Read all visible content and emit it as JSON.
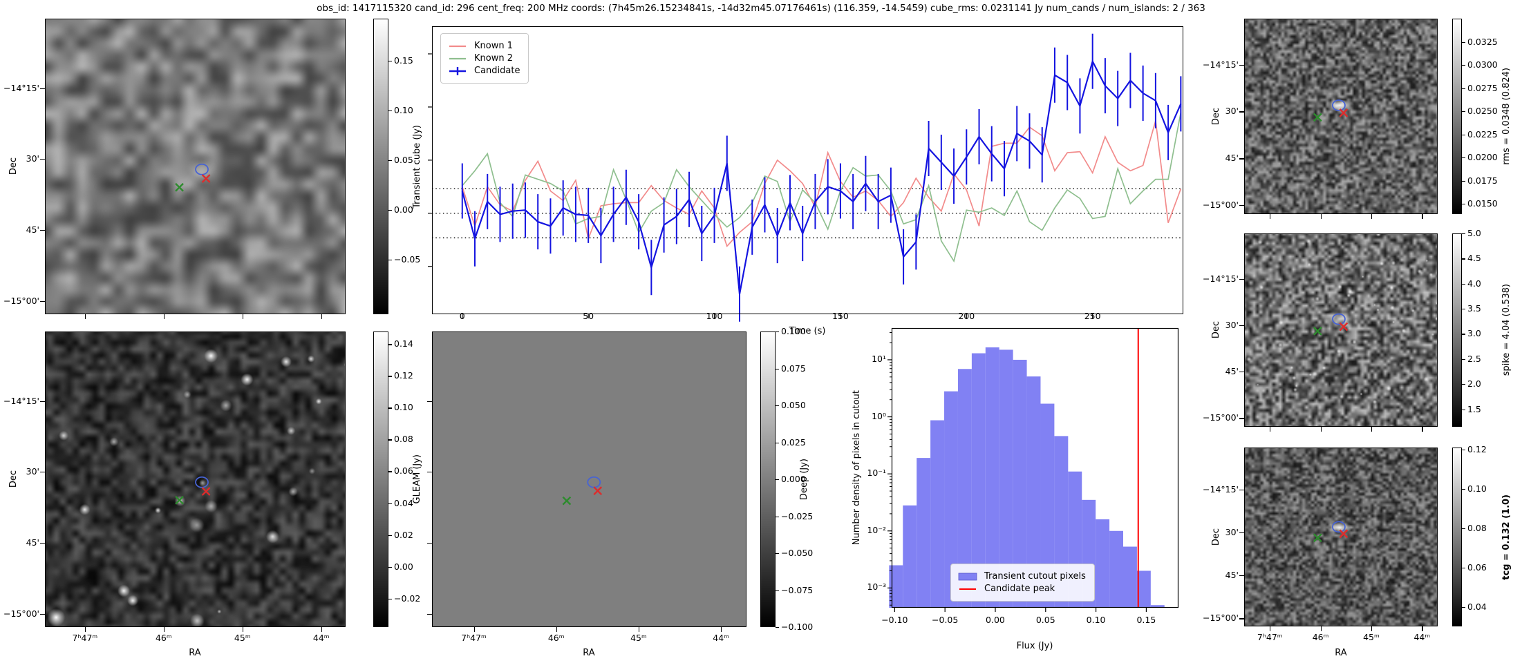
{
  "title": "obs_id: 1417115320 cand_id: 296 cent_freq: 200 MHz coords: (7h45m26.15234841s, -14d32m45.07176461s) (116.359, -14.5459) cube_rms: 0.0231141 Jy num_cands / num_islands: 2 / 363",
  "colors": {
    "known1": "#f28b8b",
    "known2": "#8fbf8f",
    "candidate": "#1414e0",
    "histogram_fill": "#8181f3",
    "candidate_peak": "#ff0000",
    "marker_circle": "#4763d4",
    "marker_x_red": "#dd2c2c",
    "marker_x_green": "#2e8b2e"
  },
  "sky_panels": {
    "dec_label": "Dec",
    "ra_label": "RA",
    "dec_ticks": [
      "−14°15'",
      "30'",
      "45'",
      "−15°00'"
    ],
    "ra_ticks": [
      "7ʰ47ᵐ",
      "46ᵐ",
      "45ᵐ",
      "44ᵐ"
    ]
  },
  "markers": {
    "left": [
      {
        "shape": "ellipse",
        "color_key": "marker_circle",
        "x": 0.522,
        "y": 0.51
      },
      {
        "shape": "x",
        "color_key": "marker_x_red",
        "x": 0.536,
        "y": 0.541
      },
      {
        "shape": "x",
        "color_key": "marker_x_green",
        "x": 0.447,
        "y": 0.571
      }
    ],
    "deep": [
      {
        "shape": "ellipse",
        "color_key": "marker_circle",
        "x": 0.515,
        "y": 0.51
      },
      {
        "shape": "x",
        "color_key": "marker_x_red",
        "x": 0.527,
        "y": 0.539
      },
      {
        "shape": "x",
        "color_key": "marker_x_green",
        "x": 0.428,
        "y": 0.573
      }
    ],
    "right": [
      {
        "shape": "ellipse",
        "color_key": "marker_circle",
        "x": 0.489,
        "y": 0.443
      },
      {
        "shape": "x",
        "color_key": "marker_x_red",
        "x": 0.514,
        "y": 0.482
      },
      {
        "shape": "x",
        "color_key": "marker_x_green",
        "x": 0.379,
        "y": 0.505
      }
    ]
  },
  "colorbars": {
    "transient": {
      "label": "Transient cube (Jy)",
      "vmin": -0.105,
      "vmax": 0.192,
      "tick_values": [
        0.15,
        0.1,
        0.05,
        0.0,
        -0.05
      ],
      "tick_labels": [
        "0.15",
        "0.10",
        "0.05",
        "0.00",
        "−0.05"
      ]
    },
    "gleam": {
      "label": "GLEAM (Jy)",
      "vmin": -0.038,
      "vmax": 0.148,
      "tick_values": [
        0.14,
        0.12,
        0.1,
        0.08,
        0.06,
        0.04,
        0.02,
        0.0,
        -0.02
      ],
      "tick_labels": [
        "0.14",
        "0.12",
        "0.10",
        "0.08",
        "0.06",
        "0.04",
        "0.02",
        "0.00",
        "−0.02"
      ]
    },
    "deep": {
      "label": "Deep (Jy)",
      "vmin": -0.1,
      "vmax": 0.1,
      "tick_values": [
        0.1,
        0.075,
        0.05,
        0.025,
        0.0,
        -0.025,
        -0.05,
        -0.075,
        -0.1
      ],
      "tick_labels": [
        "0.100",
        "0.075",
        "0.050",
        "0.025",
        "0.000",
        "−0.025",
        "−0.050",
        "−0.075",
        "−0.100"
      ]
    },
    "rms": {
      "label": "rms = 0.0348 (0.824)",
      "vmin": 0.0139,
      "vmax": 0.035,
      "tick_values": [
        0.0325,
        0.03,
        0.0275,
        0.025,
        0.0225,
        0.02,
        0.0175,
        0.015
      ],
      "tick_labels": [
        "0.0325",
        "0.0300",
        "0.0275",
        "0.0250",
        "0.0225",
        "0.0200",
        "0.0175",
        "0.0150"
      ]
    },
    "spike": {
      "label": "spike = 4.04 (0.538)",
      "vmin": 1.15,
      "vmax": 5.0,
      "tick_values": [
        5.0,
        4.5,
        4.0,
        3.5,
        3.0,
        2.5,
        2.0,
        1.5
      ],
      "tick_labels": [
        "5.0",
        "4.5",
        "4.0",
        "3.5",
        "3.0",
        "2.5",
        "2.0",
        "1.5"
      ]
    },
    "tcg": {
      "label": "tcg = 0.132 (1.0)",
      "bold": true,
      "vmin": 0.03,
      "vmax": 0.121,
      "tick_values": [
        0.12,
        0.1,
        0.08,
        0.06,
        0.04
      ],
      "tick_labels": [
        "0.12",
        "0.10",
        "0.08",
        "0.06",
        "0.04"
      ]
    }
  },
  "chart_data": [
    {
      "id": "lightcurve",
      "type": "line",
      "xlabel": "Time (s)",
      "ylabel": "",
      "xlim": [
        -12,
        286
      ],
      "ylim": [
        -0.095,
        0.176
      ],
      "xticks": [
        0,
        50,
        100,
        150,
        200,
        250
      ],
      "ytick_values": [
        0.15,
        0.1,
        0.05,
        0.0,
        -0.05
      ],
      "ytick_labels_shown": false,
      "grid": false,
      "legend_position": "upper left",
      "hlines_dotted": [
        0.0231,
        0.0,
        -0.0231
      ],
      "x": [
        0,
        5,
        10,
        15,
        20,
        25,
        30,
        35,
        40,
        45,
        50,
        55,
        60,
        65,
        70,
        75,
        80,
        85,
        90,
        95,
        100,
        105,
        110,
        115,
        120,
        125,
        130,
        135,
        140,
        145,
        150,
        155,
        160,
        165,
        170,
        175,
        180,
        185,
        190,
        195,
        200,
        205,
        210,
        215,
        220,
        225,
        230,
        235,
        240,
        245,
        250,
        255,
        260,
        265,
        270,
        275,
        280,
        285
      ],
      "series": [
        {
          "name": "Known 1",
          "color_key": "known1",
          "values": [
            0.025,
            -0.012,
            0.025,
            0.008,
            0.002,
            0.031,
            0.049,
            0.021,
            0.012,
            0.031,
            -0.024,
            0.007,
            0.009,
            0.01,
            0.01,
            0.026,
            0.012,
            0.005,
            -0.001,
            0.021,
            0.005,
            -0.031,
            -0.018,
            -0.008,
            0.028,
            0.05,
            0.04,
            0.028,
            0.006,
            0.057,
            0.03,
            0.015,
            0.021,
            0.012,
            -0.003,
            0.01,
            0.033,
            0.015,
            0.002,
            0.037,
            0.022,
            -0.012,
            0.063,
            0.066,
            0.066,
            0.081,
            0.073,
            0.04,
            0.057,
            0.058,
            0.038,
            0.072,
            0.048,
            0.04,
            0.045,
            0.087,
            -0.009,
            0.023
          ]
        },
        {
          "name": "Known 2",
          "color_key": "known2",
          "values": [
            0.026,
            0.04,
            0.056,
            0.01,
            -0.003,
            0.036,
            0.032,
            0.028,
            0.021,
            -0.01,
            -0.005,
            -0.003,
            0.041,
            0.013,
            -0.018,
            0.002,
            0.01,
            0.041,
            0.025,
            0.012,
            -0.001,
            -0.013,
            -0.004,
            0.01,
            0.035,
            0.03,
            -0.008,
            0.022,
            0.01,
            -0.015,
            0.021,
            0.043,
            0.035,
            0.036,
            0.021,
            -0.01,
            -0.006,
            0.026,
            -0.026,
            -0.045,
            0.003,
            0.001,
            0.005,
            -0.002,
            0.021,
            -0.008,
            -0.016,
            0.005,
            0.022,
            0.014,
            -0.005,
            -0.003,
            0.042,
            0.009,
            0.021,
            0.032,
            0.032,
            0.095
          ]
        },
        {
          "name": "Candidate",
          "color_key": "candidate",
          "yerr": 0.026,
          "values": [
            0.021,
            -0.024,
            0.011,
            -0.001,
            0.002,
            0.003,
            -0.008,
            -0.012,
            0.005,
            -0.001,
            -0.002,
            -0.021,
            -0.001,
            0.015,
            -0.008,
            -0.051,
            -0.011,
            -0.003,
            0.013,
            -0.019,
            -0.002,
            0.047,
            -0.076,
            -0.013,
            0.008,
            -0.021,
            0.01,
            -0.019,
            0.011,
            0.025,
            0.021,
            0.011,
            0.028,
            0.011,
            0.017,
            -0.041,
            -0.027,
            0.061,
            0.048,
            0.035,
            0.053,
            0.072,
            0.056,
            0.042,
            0.075,
            0.068,
            0.055,
            0.13,
            0.123,
            0.101,
            0.143,
            0.12,
            0.108,
            0.125,
            0.113,
            0.106,
            0.076,
            0.103
          ]
        }
      ]
    },
    {
      "id": "flux_histogram",
      "type": "bar",
      "xlabel": "Flux (Jy)",
      "ylabel": "Number density of pixels in cutout",
      "yscale": "log",
      "xlim": [
        -0.103,
        0.182
      ],
      "ylim": [
        0.00045,
        36
      ],
      "xtick_values": [
        -0.1,
        -0.05,
        0.0,
        0.05,
        0.1,
        0.15
      ],
      "xtick_labels": [
        "−0.10",
        "−0.05",
        "0.00",
        "0.05",
        "0.10",
        "0.15"
      ],
      "ytick_values": [
        10,
        1,
        0.1,
        0.01,
        0.001
      ],
      "ytick_labels": [
        "10¹",
        "10⁰",
        "10⁻¹",
        "10⁻²",
        "10⁻³"
      ],
      "bin_start": -0.1055,
      "bin_width": 0.01368,
      "heights": [
        0.0025,
        0.028,
        0.19,
        0.87,
        2.8,
        6.9,
        13,
        16.5,
        15,
        10,
        5.1,
        1.7,
        0.46,
        0.11,
        0.035,
        0.016,
        0.01,
        0.0053,
        0.002,
        0.0005
      ],
      "vline_x": 0.142,
      "legend": [
        "Transient cutout pixels",
        "Candidate peak"
      ],
      "legend_position": "lower center"
    }
  ]
}
